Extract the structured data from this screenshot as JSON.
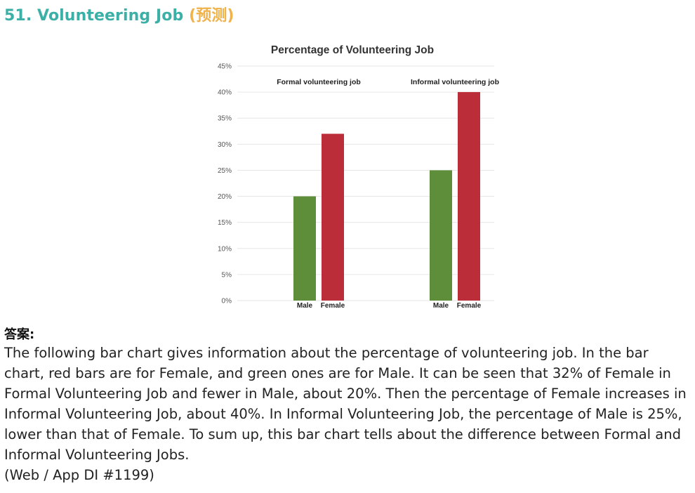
{
  "heading": {
    "title": "51. Volunteering Job",
    "tag": "(预测)"
  },
  "chart_data": {
    "type": "bar",
    "title": "Percentage of Volunteering Job",
    "groups": [
      {
        "label": "Formal volunteering job",
        "bars": [
          {
            "name": "Male",
            "value": 20,
            "color": "#5f8e3a"
          },
          {
            "name": "Female",
            "value": 32,
            "color": "#bb2d38"
          }
        ]
      },
      {
        "label": "Informal volunteering job",
        "bars": [
          {
            "name": "Male",
            "value": 25,
            "color": "#5f8e3a"
          },
          {
            "name": "Female",
            "value": 40,
            "color": "#bb2d38"
          }
        ]
      }
    ],
    "ylim": [
      0,
      45
    ],
    "ytick_step": 5,
    "ytick_labels": [
      "0%",
      "5%",
      "10%",
      "15%",
      "20%",
      "25%",
      "30%",
      "35%",
      "40%",
      "45%"
    ],
    "grid": true
  },
  "answer": {
    "label": "答案:",
    "text": "The following bar chart gives information about the percentage of volunteering job. In the bar chart, red bars are for Female, and green ones are for Male. It can be seen that 32% of Female in Formal Volunteering Job and fewer in Male, about 20%. Then the percentage of Female increases in Informal Volunteering Job, about 40%. In Informal Volunteering Job, the percentage of Male is 25%, lower than that of Female. To sum up, this bar chart tells about the difference between Formal and Informal Volunteering Jobs.",
    "source": "(Web / App DI #1199)"
  }
}
